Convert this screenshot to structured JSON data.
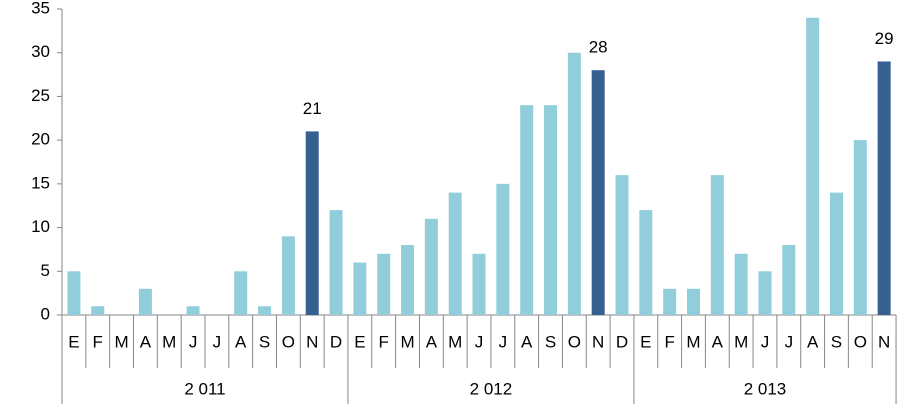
{
  "chart_data": {
    "type": "bar",
    "categories": [
      "E",
      "F",
      "M",
      "A",
      "M",
      "J",
      "J",
      "A",
      "S",
      "O",
      "N",
      "D",
      "E",
      "F",
      "M",
      "A",
      "M",
      "J",
      "J",
      "A",
      "S",
      "O",
      "N",
      "D",
      "E",
      "F",
      "M",
      "A",
      "M",
      "J",
      "J",
      "A",
      "S",
      "O",
      "N"
    ],
    "groups": [
      {
        "name": "2 011",
        "size": 12
      },
      {
        "name": "2 012",
        "size": 12
      },
      {
        "name": "2 013",
        "size": 11
      }
    ],
    "values": [
      5,
      1,
      0,
      3,
      0,
      1,
      0,
      5,
      1,
      9,
      21,
      12,
      6,
      7,
      8,
      11,
      14,
      7,
      15,
      24,
      24,
      30,
      28,
      16,
      12,
      3,
      3,
      16,
      7,
      5,
      8,
      34,
      14,
      20,
      29
    ],
    "value_labels": [
      null,
      null,
      null,
      null,
      null,
      null,
      null,
      null,
      null,
      null,
      "21",
      null,
      null,
      null,
      null,
      null,
      null,
      null,
      null,
      null,
      null,
      null,
      "28",
      null,
      null,
      null,
      null,
      null,
      null,
      null,
      null,
      null,
      null,
      null,
      "29"
    ],
    "colors": [
      "#92cddc",
      "#92cddc",
      "#92cddc",
      "#92cddc",
      "#92cddc",
      "#92cddc",
      "#92cddc",
      "#92cddc",
      "#92cddc",
      "#92cddc",
      "#366092",
      "#92cddc",
      "#92cddc",
      "#92cddc",
      "#92cddc",
      "#92cddc",
      "#92cddc",
      "#92cddc",
      "#92cddc",
      "#92cddc",
      "#92cddc",
      "#92cddc",
      "#366092",
      "#92cddc",
      "#92cddc",
      "#92cddc",
      "#92cddc",
      "#92cddc",
      "#92cddc",
      "#92cddc",
      "#92cddc",
      "#92cddc",
      "#92cddc",
      "#92cddc",
      "#366092"
    ],
    "ylim": [
      0,
      35
    ],
    "yticks": [
      0,
      5,
      10,
      15,
      20,
      25,
      30,
      35
    ],
    "grid": false
  }
}
